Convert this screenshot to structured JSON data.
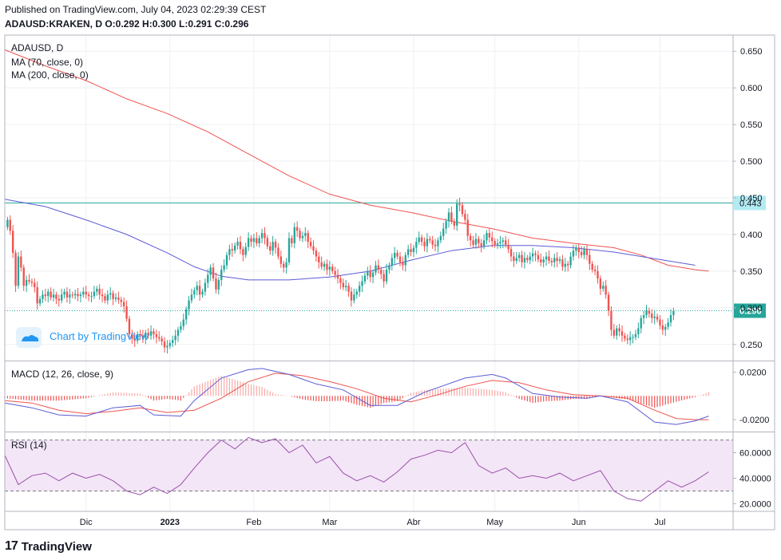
{
  "header": {
    "published": "Published on TradingView.com, July 04, 2023 02:29:39 CEST",
    "ohlc": "ADAUSD:KRAKEN, D  O:0.292 H:0.300 L:0.291 C:0.296"
  },
  "footer": {
    "brand_mark": "17",
    "brand": "TradingView"
  },
  "colors": {
    "up": "#26a69a",
    "down": "#ef5350",
    "ma70": "#ef5350",
    "ma200": "#5b5bd6",
    "macd": "#5b5bd6",
    "signal": "#ef5350",
    "rsi": "#9c4fae",
    "rsi_band": "#f3e6f6",
    "hline": "#26a69a",
    "grid": "#eef0f3",
    "axis": "#131722"
  },
  "chart_data": [
    {
      "type": "candlestick",
      "pane": "price",
      "title": "ADAUSD, D",
      "legend": [
        "MA (70, close, 0)",
        "MA (200, close, 0)"
      ],
      "watermark": "Chart by TradingView",
      "yticks": [
        "0.650",
        "0.600",
        "0.550",
        "0.500",
        "0.450",
        "0.400",
        "0.350",
        "0.300",
        "0.250"
      ],
      "yticks_values": [
        0.65,
        0.6,
        0.55,
        0.5,
        0.45,
        0.4,
        0.35,
        0.3,
        0.25
      ],
      "ylim": [
        0.228,
        0.672
      ],
      "hline": {
        "value": 0.443,
        "label": "0.443"
      },
      "last_price": {
        "value": 0.296,
        "label": "0.296"
      },
      "xticks": [
        {
          "label": "Dic",
          "day": 30
        },
        {
          "label": "2023",
          "day": 61
        },
        {
          "label": "Feb",
          "day": 92
        },
        {
          "label": "Mar",
          "day": 120
        },
        {
          "label": "Abr",
          "day": 151
        },
        {
          "label": "May",
          "day": 181
        },
        {
          "label": "Jun",
          "day": 212
        },
        {
          "label": "Jul",
          "day": 242
        }
      ],
      "xlim": [
        0,
        269
      ],
      "candles_close": [
        0.42,
        0.405,
        0.375,
        0.33,
        0.37,
        0.355,
        0.33,
        0.338,
        0.336,
        0.334,
        0.328,
        0.306,
        0.312,
        0.318,
        0.316,
        0.322,
        0.314,
        0.318,
        0.312,
        0.31,
        0.318,
        0.322,
        0.314,
        0.318,
        0.317,
        0.319,
        0.316,
        0.318,
        0.322,
        0.318,
        0.316,
        0.316,
        0.322,
        0.326,
        0.318,
        0.316,
        0.31,
        0.318,
        0.32,
        0.312,
        0.314,
        0.311,
        0.308,
        0.302,
        0.285,
        0.264,
        0.258,
        0.255,
        0.264,
        0.262,
        0.259,
        0.266,
        0.262,
        0.268,
        0.264,
        0.26,
        0.258,
        0.254,
        0.246,
        0.248,
        0.252,
        0.256,
        0.262,
        0.27,
        0.275,
        0.284,
        0.298,
        0.31,
        0.318,
        0.324,
        0.33,
        0.318,
        0.322,
        0.334,
        0.345,
        0.355,
        0.34,
        0.325,
        0.338,
        0.352,
        0.358,
        0.372,
        0.38,
        0.378,
        0.385,
        0.39,
        0.38,
        0.372,
        0.383,
        0.395,
        0.39,
        0.395,
        0.388,
        0.395,
        0.402,
        0.395,
        0.384,
        0.378,
        0.39,
        0.382,
        0.37,
        0.36,
        0.355,
        0.362,
        0.395,
        0.388,
        0.41,
        0.405,
        0.395,
        0.398,
        0.402,
        0.39,
        0.384,
        0.378,
        0.37,
        0.362,
        0.356,
        0.36,
        0.352,
        0.356,
        0.35,
        0.345,
        0.34,
        0.334,
        0.328,
        0.33,
        0.322,
        0.31,
        0.318,
        0.322,
        0.33,
        0.336,
        0.344,
        0.35,
        0.342,
        0.348,
        0.358,
        0.352,
        0.346,
        0.336,
        0.352,
        0.358,
        0.368,
        0.375,
        0.37,
        0.362,
        0.358,
        0.372,
        0.38,
        0.376,
        0.382,
        0.39,
        0.396,
        0.39,
        0.384,
        0.394,
        0.392,
        0.386,
        0.384,
        0.392,
        0.398,
        0.408,
        0.418,
        0.43,
        0.418,
        0.412,
        0.442,
        0.44,
        0.428,
        0.42,
        0.398,
        0.392,
        0.386,
        0.394,
        0.388,
        0.384,
        0.392,
        0.402,
        0.396,
        0.391,
        0.386,
        0.388,
        0.39,
        0.392,
        0.386,
        0.38,
        0.37,
        0.364,
        0.368,
        0.372,
        0.362,
        0.368,
        0.365,
        0.37,
        0.374,
        0.372,
        0.366,
        0.362,
        0.366,
        0.37,
        0.364,
        0.362,
        0.368,
        0.364,
        0.366,
        0.356,
        0.36,
        0.358,
        0.37,
        0.378,
        0.382,
        0.376,
        0.372,
        0.38,
        0.372,
        0.36,
        0.352,
        0.35,
        0.34,
        0.326,
        0.33,
        0.318,
        0.296,
        0.27,
        0.262,
        0.272,
        0.268,
        0.262,
        0.258,
        0.256,
        0.26,
        0.26,
        0.264,
        0.272,
        0.286,
        0.29,
        0.296,
        0.292,
        0.286,
        0.288,
        0.284,
        0.276,
        0.27,
        0.274,
        0.28,
        0.29,
        0.296
      ],
      "ma70_points": [
        [
          0,
          0.652
        ],
        [
          15,
          0.63
        ],
        [
          30,
          0.61
        ],
        [
          45,
          0.585
        ],
        [
          60,
          0.565
        ],
        [
          75,
          0.54
        ],
        [
          90,
          0.51
        ],
        [
          105,
          0.48
        ],
        [
          120,
          0.455
        ],
        [
          135,
          0.44
        ],
        [
          150,
          0.43
        ],
        [
          165,
          0.418
        ],
        [
          180,
          0.408
        ],
        [
          195,
          0.395
        ],
        [
          210,
          0.388
        ],
        [
          225,
          0.382
        ],
        [
          235,
          0.372
        ],
        [
          240,
          0.365
        ],
        [
          245,
          0.358
        ],
        [
          250,
          0.355
        ],
        [
          255,
          0.352
        ],
        [
          260,
          0.35
        ]
      ],
      "ma200_points": [
        [
          0,
          0.448
        ],
        [
          15,
          0.438
        ],
        [
          30,
          0.42
        ],
        [
          45,
          0.4
        ],
        [
          60,
          0.375
        ],
        [
          70,
          0.356
        ],
        [
          80,
          0.343
        ],
        [
          90,
          0.338
        ],
        [
          105,
          0.338
        ],
        [
          120,
          0.342
        ],
        [
          135,
          0.35
        ],
        [
          150,
          0.365
        ],
        [
          165,
          0.378
        ],
        [
          180,
          0.385
        ],
        [
          195,
          0.385
        ],
        [
          210,
          0.382
        ],
        [
          225,
          0.376
        ],
        [
          235,
          0.37
        ],
        [
          245,
          0.364
        ],
        [
          255,
          0.358
        ]
      ]
    },
    {
      "type": "line",
      "pane": "macd",
      "title": "MACD (12, 26, close, 9)",
      "yticks": [
        "0.0200",
        "-0.0200"
      ],
      "yticks_values": [
        0.02,
        -0.02
      ],
      "ylim": [
        -0.03,
        0.029
      ],
      "series": [
        {
          "name": "MACD",
          "points": [
            [
              0,
              -0.006
            ],
            [
              10,
              -0.01
            ],
            [
              20,
              -0.016
            ],
            [
              30,
              -0.017
            ],
            [
              40,
              -0.01
            ],
            [
              50,
              -0.008
            ],
            [
              55,
              -0.016
            ],
            [
              65,
              -0.017
            ],
            [
              70,
              -0.004
            ],
            [
              80,
              0.015
            ],
            [
              90,
              0.022
            ],
            [
              95,
              0.023
            ],
            [
              105,
              0.018
            ],
            [
              115,
              0.01
            ],
            [
              125,
              0.005
            ],
            [
              135,
              -0.008
            ],
            [
              145,
              -0.008
            ],
            [
              155,
              0.003
            ],
            [
              170,
              0.015
            ],
            [
              180,
              0.018
            ],
            [
              185,
              0.015
            ],
            [
              195,
              0.002
            ],
            [
              205,
              -0.001
            ],
            [
              215,
              -0.002
            ],
            [
              220,
              0.0
            ],
            [
              230,
              -0.005
            ],
            [
              240,
              -0.022
            ],
            [
              248,
              -0.024
            ],
            [
              255,
              -0.021
            ],
            [
              260,
              -0.017
            ]
          ]
        },
        {
          "name": "Signal",
          "points": [
            [
              0,
              -0.004
            ],
            [
              10,
              -0.006
            ],
            [
              20,
              -0.012
            ],
            [
              30,
              -0.015
            ],
            [
              40,
              -0.013
            ],
            [
              50,
              -0.01
            ],
            [
              60,
              -0.014
            ],
            [
              70,
              -0.012
            ],
            [
              80,
              -0.002
            ],
            [
              90,
              0.012
            ],
            [
              100,
              0.019
            ],
            [
              110,
              0.017
            ],
            [
              120,
              0.012
            ],
            [
              130,
              0.006
            ],
            [
              140,
              -0.002
            ],
            [
              150,
              -0.005
            ],
            [
              160,
              0.001
            ],
            [
              170,
              0.008
            ],
            [
              180,
              0.013
            ],
            [
              190,
              0.011
            ],
            [
              200,
              0.005
            ],
            [
              210,
              0.001
            ],
            [
              220,
              0.0
            ],
            [
              230,
              -0.002
            ],
            [
              240,
              -0.012
            ],
            [
              248,
              -0.019
            ],
            [
              255,
              -0.02
            ],
            [
              260,
              -0.02
            ]
          ]
        }
      ]
    },
    {
      "type": "line",
      "pane": "rsi",
      "title": "RSI (14)",
      "yticks": [
        "60.0000",
        "40.0000",
        "20.0000"
      ],
      "yticks_values": [
        60,
        40,
        20
      ],
      "band": [
        30,
        70
      ],
      "ylim": [
        14,
        76
      ],
      "series": [
        {
          "name": "RSI",
          "points": [
            [
              0,
              58
            ],
            [
              5,
              35
            ],
            [
              10,
              42
            ],
            [
              15,
              44
            ],
            [
              20,
              38
            ],
            [
              25,
              44
            ],
            [
              30,
              40
            ],
            [
              35,
              43
            ],
            [
              40,
              38
            ],
            [
              45,
              30
            ],
            [
              50,
              27
            ],
            [
              55,
              33
            ],
            [
              60,
              28
            ],
            [
              65,
              35
            ],
            [
              70,
              48
            ],
            [
              75,
              60
            ],
            [
              80,
              70
            ],
            [
              85,
              63
            ],
            [
              90,
              72
            ],
            [
              95,
              68
            ],
            [
              100,
              71
            ],
            [
              105,
              60
            ],
            [
              110,
              66
            ],
            [
              115,
              52
            ],
            [
              120,
              57
            ],
            [
              125,
              44
            ],
            [
              130,
              38
            ],
            [
              135,
              42
            ],
            [
              140,
              37
            ],
            [
              145,
              45
            ],
            [
              150,
              55
            ],
            [
              155,
              58
            ],
            [
              160,
              62
            ],
            [
              165,
              60
            ],
            [
              170,
              68
            ],
            [
              175,
              50
            ],
            [
              180,
              44
            ],
            [
              185,
              48
            ],
            [
              190,
              40
            ],
            [
              195,
              42
            ],
            [
              200,
              40
            ],
            [
              205,
              44
            ],
            [
              210,
              38
            ],
            [
              215,
              42
            ],
            [
              220,
              46
            ],
            [
              225,
              30
            ],
            [
              230,
              24
            ],
            [
              235,
              22
            ],
            [
              240,
              30
            ],
            [
              245,
              38
            ],
            [
              250,
              33
            ],
            [
              255,
              38
            ],
            [
              260,
              45
            ]
          ]
        }
      ]
    }
  ]
}
